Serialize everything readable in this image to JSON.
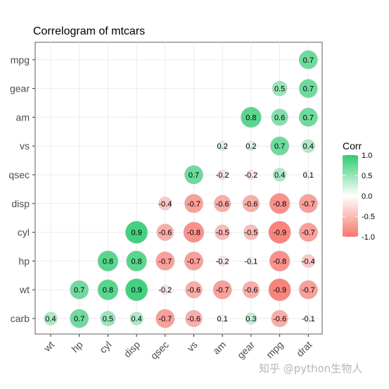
{
  "chart_data": {
    "type": "heatmap",
    "title": "Correlogram of mtcars",
    "x_labels": [
      "wt",
      "hp",
      "cyl",
      "disp",
      "qsec",
      "vs",
      "am",
      "gear",
      "mpg",
      "drat"
    ],
    "y_labels": [
      "carb",
      "wt",
      "hp",
      "cyl",
      "disp",
      "qsec",
      "vs",
      "am",
      "gear",
      "mpg"
    ],
    "cells": [
      {
        "x": "drat",
        "y": "mpg",
        "value": 0.7
      },
      {
        "x": "mpg",
        "y": "gear",
        "value": 0.5
      },
      {
        "x": "drat",
        "y": "gear",
        "value": 0.7
      },
      {
        "x": "gear",
        "y": "am",
        "value": 0.8
      },
      {
        "x": "mpg",
        "y": "am",
        "value": 0.6
      },
      {
        "x": "drat",
        "y": "am",
        "value": 0.7
      },
      {
        "x": "am",
        "y": "vs",
        "value": 0.2
      },
      {
        "x": "gear",
        "y": "vs",
        "value": 0.2
      },
      {
        "x": "mpg",
        "y": "vs",
        "value": 0.7
      },
      {
        "x": "drat",
        "y": "vs",
        "value": 0.4
      },
      {
        "x": "vs",
        "y": "qsec",
        "value": 0.7
      },
      {
        "x": "am",
        "y": "qsec",
        "value": -0.2
      },
      {
        "x": "gear",
        "y": "qsec",
        "value": -0.2
      },
      {
        "x": "mpg",
        "y": "qsec",
        "value": 0.4
      },
      {
        "x": "drat",
        "y": "qsec",
        "value": 0.1
      },
      {
        "x": "qsec",
        "y": "disp",
        "value": -0.4
      },
      {
        "x": "vs",
        "y": "disp",
        "value": -0.7
      },
      {
        "x": "am",
        "y": "disp",
        "value": -0.6
      },
      {
        "x": "gear",
        "y": "disp",
        "value": -0.6
      },
      {
        "x": "mpg",
        "y": "disp",
        "value": -0.8
      },
      {
        "x": "drat",
        "y": "disp",
        "value": -0.7
      },
      {
        "x": "disp",
        "y": "cyl",
        "value": 0.9
      },
      {
        "x": "qsec",
        "y": "cyl",
        "value": -0.6
      },
      {
        "x": "vs",
        "y": "cyl",
        "value": -0.8
      },
      {
        "x": "am",
        "y": "cyl",
        "value": -0.5
      },
      {
        "x": "gear",
        "y": "cyl",
        "value": -0.5
      },
      {
        "x": "mpg",
        "y": "cyl",
        "value": -0.9
      },
      {
        "x": "drat",
        "y": "cyl",
        "value": -0.7
      },
      {
        "x": "cyl",
        "y": "hp",
        "value": 0.8
      },
      {
        "x": "disp",
        "y": "hp",
        "value": 0.8
      },
      {
        "x": "qsec",
        "y": "hp",
        "value": -0.7
      },
      {
        "x": "vs",
        "y": "hp",
        "value": -0.7
      },
      {
        "x": "am",
        "y": "hp",
        "value": -0.2
      },
      {
        "x": "gear",
        "y": "hp",
        "value": -0.1
      },
      {
        "x": "mpg",
        "y": "hp",
        "value": -0.8
      },
      {
        "x": "drat",
        "y": "hp",
        "value": -0.4
      },
      {
        "x": "hp",
        "y": "wt",
        "value": 0.7
      },
      {
        "x": "cyl",
        "y": "wt",
        "value": 0.8
      },
      {
        "x": "disp",
        "y": "wt",
        "value": 0.9
      },
      {
        "x": "qsec",
        "y": "wt",
        "value": -0.2
      },
      {
        "x": "vs",
        "y": "wt",
        "value": -0.6
      },
      {
        "x": "am",
        "y": "wt",
        "value": -0.7
      },
      {
        "x": "gear",
        "y": "wt",
        "value": -0.6
      },
      {
        "x": "mpg",
        "y": "wt",
        "value": -0.9
      },
      {
        "x": "drat",
        "y": "wt",
        "value": -0.7
      },
      {
        "x": "wt",
        "y": "carb",
        "value": 0.4
      },
      {
        "x": "hp",
        "y": "carb",
        "value": 0.7
      },
      {
        "x": "cyl",
        "y": "carb",
        "value": 0.5
      },
      {
        "x": "disp",
        "y": "carb",
        "value": 0.4
      },
      {
        "x": "qsec",
        "y": "carb",
        "value": -0.7
      },
      {
        "x": "vs",
        "y": "carb",
        "value": -0.6
      },
      {
        "x": "am",
        "y": "carb",
        "value": 0.1
      },
      {
        "x": "gear",
        "y": "carb",
        "value": 0.3
      },
      {
        "x": "mpg",
        "y": "carb",
        "value": -0.6
      },
      {
        "x": "drat",
        "y": "carb",
        "value": -0.1
      }
    ],
    "legend": {
      "title": "Corr",
      "ticks": [
        "1.0",
        "0.5",
        "0.0",
        "-0.5",
        "-1.0"
      ],
      "tick_values": [
        1.0,
        0.5,
        0.0,
        -0.5,
        -1.0
      ],
      "range": [
        -1,
        1
      ],
      "colors": {
        "low": "#F8766D",
        "mid": "#FFFFFF",
        "high": "#2ECC71"
      },
      "placement": "right"
    },
    "grid": true
  },
  "watermark": "知乎 @python生物人"
}
